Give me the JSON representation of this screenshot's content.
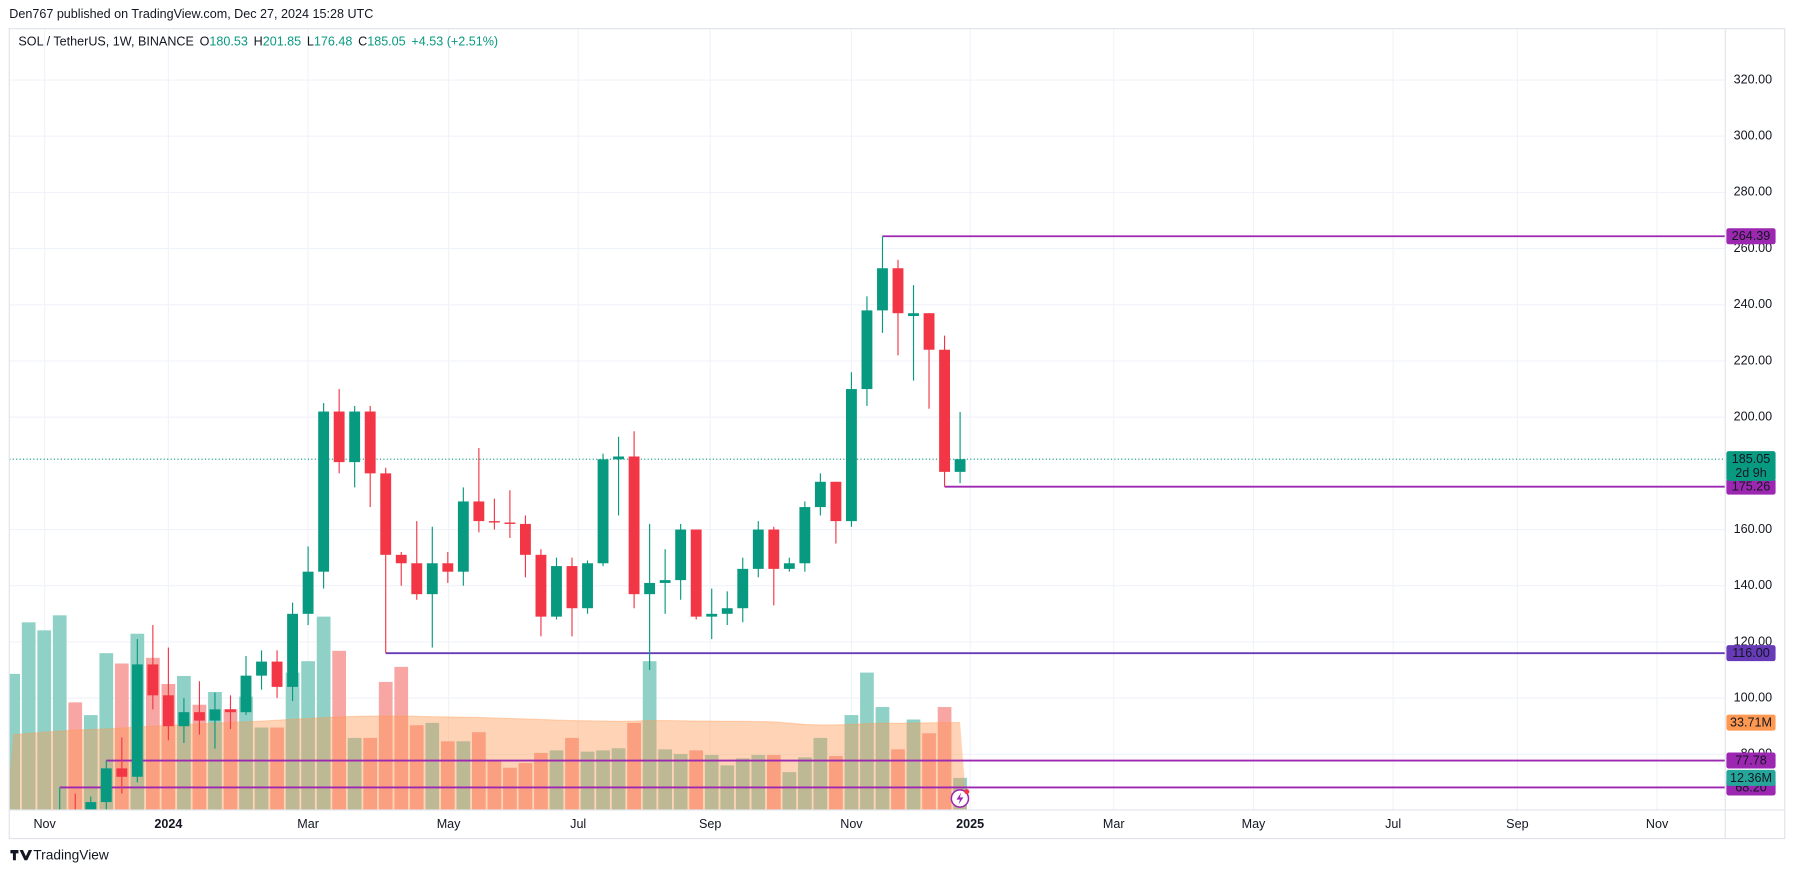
{
  "header": {
    "published": "Den767 published on TradingView.com, Dec 27, 2024 15:28 UTC",
    "symbol": "SOL / TetherUS, 1W, BINANCE",
    "ohlc_letters": [
      "O",
      "H",
      "L",
      "C"
    ],
    "change": "+4.53 (+2.51%)",
    "countdown": "2d 9h"
  },
  "footer": {
    "brand": "TradingView"
  },
  "chart_data": {
    "type": "candlestick",
    "up_color": "#089981",
    "down_color": "#f23645",
    "open": [
      null,
      null,
      null,
      57,
      59,
      56,
      63,
      75,
      72,
      112,
      101,
      90,
      95,
      92,
      96,
      95,
      108,
      113,
      104,
      130,
      145,
      202,
      184,
      202,
      180,
      151,
      148,
      137,
      148,
      145,
      170,
      163,
      162.5,
      162,
      151,
      129,
      147,
      132,
      148,
      185,
      186,
      137,
      141,
      142,
      160,
      129,
      130,
      132,
      146,
      160,
      146,
      148,
      168,
      177,
      163,
      210,
      238,
      253,
      236,
      237,
      224,
      180.53
    ],
    "high": [
      null,
      null,
      null,
      68.2,
      66,
      65,
      77.78,
      86,
      121,
      126,
      118,
      100,
      106,
      102,
      101,
      115,
      117,
      117,
      134,
      154,
      205,
      210,
      204,
      204,
      182,
      152,
      163,
      161,
      152,
      175,
      189,
      171,
      174,
      165,
      153,
      150,
      150,
      149,
      187,
      193,
      195,
      162,
      153,
      162,
      160,
      139,
      138,
      150,
      163,
      161,
      150,
      170,
      180,
      177,
      216,
      243,
      264.39,
      256,
      247,
      237,
      229,
      201.85
    ],
    "low": [
      null,
      null,
      null,
      52,
      51,
      53,
      60,
      66,
      70,
      96,
      85,
      84,
      87,
      82,
      89,
      94,
      103,
      100,
      99,
      126,
      139,
      180,
      175,
      168,
      116,
      140,
      135,
      118,
      141,
      140,
      159,
      160,
      157,
      143,
      122,
      128,
      122,
      130,
      147,
      165,
      132,
      110,
      130,
      135,
      128,
      121,
      126,
      127,
      143,
      133,
      145,
      145,
      165,
      155,
      161,
      204,
      230,
      222,
      213,
      203,
      175.26,
      176.48
    ],
    "close": [
      null,
      null,
      null,
      59,
      56,
      63,
      75,
      72,
      112,
      101,
      90,
      95,
      92,
      96,
      95,
      108,
      113,
      104,
      130,
      145,
      202,
      184,
      202,
      180,
      151,
      148,
      137,
      148,
      145,
      170,
      163,
      162.5,
      162,
      151,
      129,
      147,
      132,
      148,
      185,
      186,
      137,
      141,
      142,
      160,
      129,
      130,
      132,
      146,
      160,
      146,
      148,
      168,
      177,
      163,
      210,
      238,
      253,
      237,
      237,
      224,
      180.53,
      185.05
    ],
    "volume": {
      "values": [
        52.5,
        72.4,
        69.3,
        75.1,
        41.5,
        36.6,
        60.5,
        56.5,
        68,
        58.7,
        48.6,
        51.7,
        40.6,
        45.5,
        38.9,
        43.7,
        31.8,
        31.8,
        53,
        57.4,
        74.6,
        61.4,
        27.8,
        27.8,
        49.4,
        55.2,
        32.7,
        33.6,
        26.5,
        26.5,
        30,
        19,
        16.3,
        18.1,
        22,
        23,
        27.8,
        22.5,
        23,
        23.8,
        33.6,
        57.4,
        23.4,
        21.6,
        23,
        21.2,
        17.2,
        19.9,
        21.2,
        21.2,
        14.6,
        20.3,
        27.8,
        20.8,
        36.6,
        53,
        39.7,
        23.4,
        34.9,
        29.6,
        39.7,
        12.36
      ],
      "colors": [
        "#8fd1c6",
        "#8fd1c6",
        "#8fd1c6",
        "#8fd1c6",
        "#f7a6a4",
        "#8fd1c6",
        "#8fd1c6",
        "#f7a6a4",
        "#8fd1c6",
        "#f7a6a4",
        "#f7a6a4",
        "#8fd1c6",
        "#f7a6a4",
        "#8fd1c6",
        "#f7a6a4",
        "#8fd1c6",
        "#8fd1c6",
        "#f7a6a4",
        "#8fd1c6",
        "#8fd1c6",
        "#8fd1c6",
        "#f7a6a4",
        "#8fd1c6",
        "#f7a6a4",
        "#f7a6a4",
        "#f7a6a4",
        "#f7a6a4",
        "#8fd1c6",
        "#f7a6a4",
        "#8fd1c6",
        "#f7a6a4",
        "#f7a6a4",
        "#f7a6a4",
        "#f7a6a4",
        "#f7a6a4",
        "#8fd1c6",
        "#f7a6a4",
        "#8fd1c6",
        "#8fd1c6",
        "#8fd1c6",
        "#f7a6a4",
        "#8fd1c6",
        "#8fd1c6",
        "#8fd1c6",
        "#f7a6a4",
        "#8fd1c6",
        "#8fd1c6",
        "#8fd1c6",
        "#8fd1c6",
        "#f7a6a4",
        "#8fd1c6",
        "#8fd1c6",
        "#8fd1c6",
        "#f7a6a4",
        "#8fd1c6",
        "#8fd1c6",
        "#8fd1c6",
        "#f7a6a4",
        "#8fd1c6",
        "#f7a6a4",
        "#f7a6a4",
        "#8fd1c6"
      ],
      "last_label": "12.36M",
      "label_color": "#26a69a"
    },
    "volume_ma": {
      "values": [
        29,
        29.5,
        30,
        30.4,
        30.8,
        31,
        31.3,
        31.6,
        32,
        32.3,
        32.6,
        32.9,
        33.2,
        33.5,
        33.7,
        34,
        34.3,
        34.6,
        35,
        35.3,
        35.6,
        35.9,
        36.1,
        36.2,
        36.2,
        36.2,
        36.1,
        36,
        35.9,
        35.8,
        35.7,
        35.5,
        35.3,
        35.1,
        34.9,
        34.7,
        34.5,
        34.4,
        34.3,
        34.2,
        34.3,
        34.5,
        34.5,
        34.4,
        34.3,
        34.3,
        34.2,
        34.2,
        34.1,
        34,
        33.5,
        33,
        32.8,
        32.8,
        33,
        33.3,
        33.5,
        33.4,
        33.5,
        33.6,
        33.7,
        33.71
      ],
      "last_label": "33.71M",
      "color": "#ff9850"
    },
    "volume_lim": [
      0,
      301.5
    ],
    "xlim": [
      -0.25,
      110.29
    ],
    "ylim": [
      60.2,
      338.3
    ],
    "yticks": [
      {
        "value": 80,
        "label": "80.00"
      },
      {
        "value": 100,
        "label": "100.00"
      },
      {
        "value": 120,
        "label": "120.00"
      },
      {
        "value": 140,
        "label": "140.00"
      },
      {
        "value": 160,
        "label": "160.00"
      },
      {
        "value": 200,
        "label": "200.00"
      },
      {
        "value": 220,
        "label": "220.00"
      },
      {
        "value": 240,
        "label": "240.00"
      },
      {
        "value": 260,
        "label": "260.00"
      },
      {
        "value": 280,
        "label": "280.00"
      },
      {
        "value": 300,
        "label": "300.00"
      },
      {
        "value": 320,
        "label": "320.00"
      }
    ],
    "xticks": [
      {
        "value": 2.03,
        "label": "Nov"
      },
      {
        "value": 10.0,
        "label": "2024"
      },
      {
        "value": 19.0,
        "label": "Mar"
      },
      {
        "value": 28.05,
        "label": "May"
      },
      {
        "value": 36.4,
        "label": "Jul"
      },
      {
        "value": 44.9,
        "label": "Sep"
      },
      {
        "value": 54.0,
        "label": "Nov"
      },
      {
        "value": 61.65,
        "label": "2025"
      },
      {
        "value": 70.9,
        "label": "Mar"
      },
      {
        "value": 79.9,
        "label": "May"
      },
      {
        "value": 88.9,
        "label": "Jul"
      },
      {
        "value": 96.9,
        "label": "Sep"
      },
      {
        "value": 105.9,
        "label": "Nov"
      }
    ],
    "grid": true,
    "levels": [
      {
        "value": 264.39,
        "from": 56,
        "color": "#9c27b0"
      },
      {
        "value": 175.26,
        "from": 60,
        "color": "#9c27b0"
      },
      {
        "value": 116,
        "label": "116.00",
        "from": 24,
        "color": "#673ab7"
      },
      {
        "value": 77.78,
        "from": 6,
        "color": "#9c27b0"
      },
      {
        "value": 68.2,
        "label": "68.20",
        "from": 3,
        "color": "#9c27b0"
      }
    ]
  }
}
